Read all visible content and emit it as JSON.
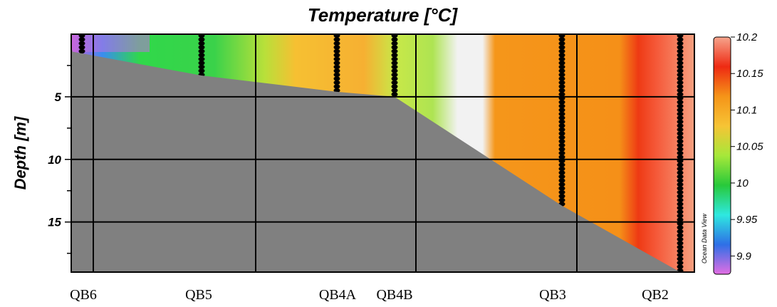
{
  "chart_data": {
    "type": "heatmap",
    "title": "Temperature [°C]",
    "ylabel": "Depth [m]",
    "xlabel": "",
    "ylim": [
      19,
      0
    ],
    "yticks": [
      5,
      10,
      15
    ],
    "stations": [
      {
        "name": "QB6",
        "max_depth": 1.4
      },
      {
        "name": "QB5",
        "max_depth": 3.3
      },
      {
        "name": "QB4A",
        "max_depth": 4.6
      },
      {
        "name": "QB4B",
        "max_depth": 5.0
      },
      {
        "name": "QB3",
        "max_depth": 13.7
      },
      {
        "name": "QB2",
        "max_depth": 19.0
      }
    ],
    "colorbar": {
      "min": 9.875,
      "max": 10.2,
      "ticks": [
        "10.2",
        "10.15",
        "10.1",
        "10.05",
        "10",
        "9.95",
        "9.9"
      ],
      "colors": [
        "#e36ee3",
        "#2e6fe6",
        "#2ee8e0",
        "#28c93a",
        "#a6e83a",
        "#f6c435",
        "#f59418",
        "#ee2a12",
        "#f6a48c"
      ]
    },
    "temperature_bands": [
      {
        "from_station": "QB6",
        "to_station": "QB6",
        "temp": 9.9
      },
      {
        "from_station": "QB6",
        "to_station": "QB5",
        "temp": 10.02
      },
      {
        "from_station": "QB5",
        "to_station": "QB4A",
        "temp": 10.11
      },
      {
        "from_station": "QB4B",
        "to_station": "QB4B",
        "temp": 10.05
      },
      {
        "from_station": "QB4B",
        "to_station": "QB3",
        "temp": 10.11
      },
      {
        "from_station": "QB3",
        "to_station": "QB3",
        "temp": 10.12
      },
      {
        "from_station": "QB2",
        "to_station": "QB2",
        "temp": 10.16
      }
    ],
    "bathymetry_color": "#808080",
    "watermark": "Ocean Data View"
  }
}
